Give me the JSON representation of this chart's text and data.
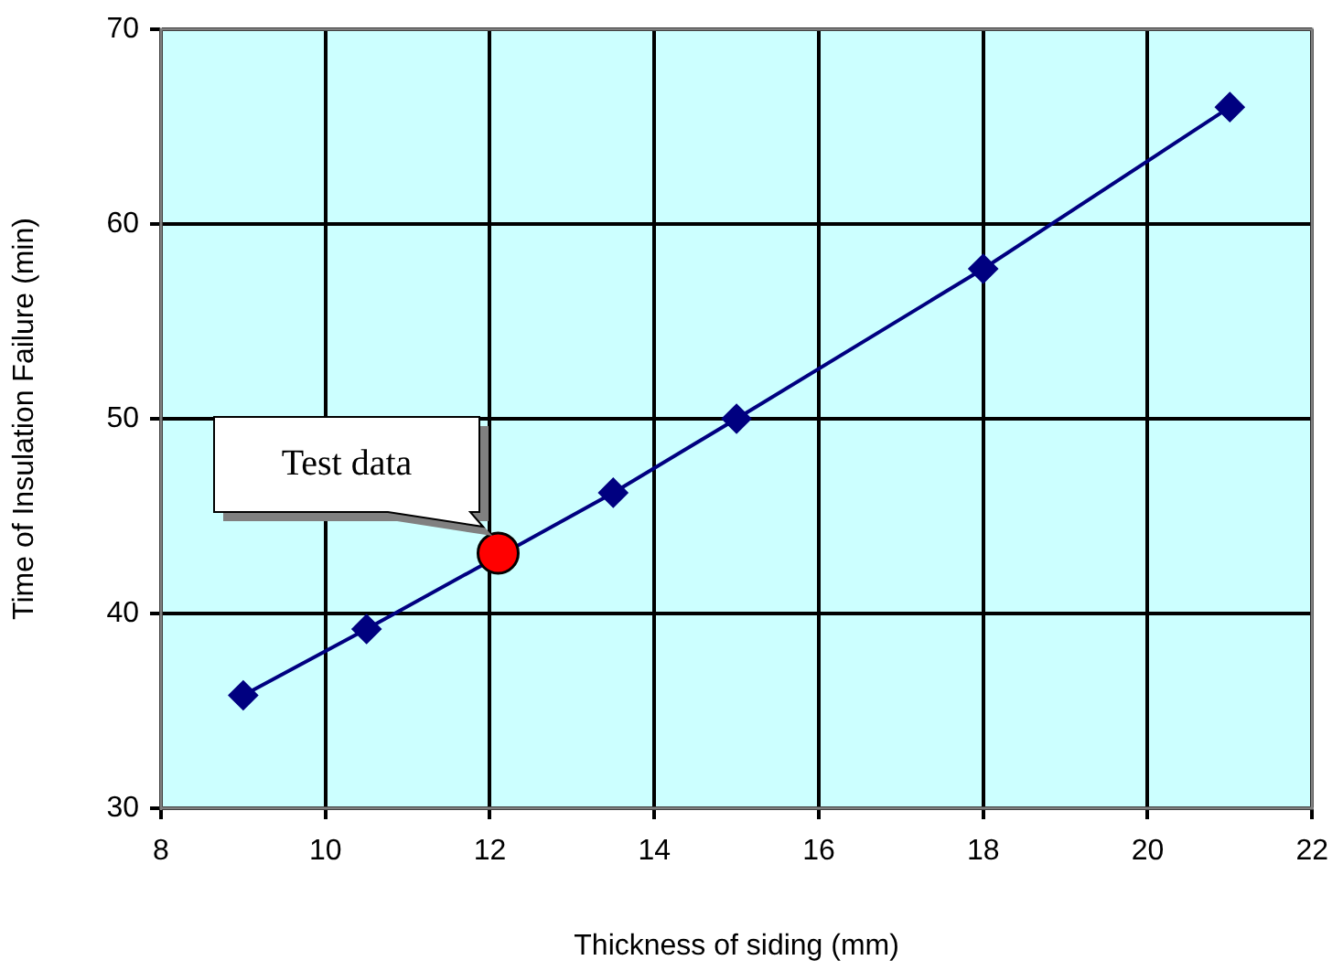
{
  "chart_data": {
    "type": "line",
    "xlabel": "Thickness of siding (mm)",
    "ylabel": "Time of Insulation Failure (min)",
    "series": [
      {
        "color": "#000080",
        "x": [
          9,
          10.5,
          12,
          13.5,
          15,
          18,
          21
        ],
        "values": [
          35.8,
          39.2,
          null,
          46.2,
          50.0,
          57.7,
          66.0
        ],
        "marker": "diamond"
      },
      {
        "type": "scatter",
        "color": "#ff0000",
        "x": [
          12.1
        ],
        "values": [
          43.1
        ],
        "marker": "circle"
      }
    ],
    "xlim": [
      8,
      22
    ],
    "xticks": [
      8,
      10,
      12,
      14,
      16,
      18,
      20,
      22
    ],
    "ylim": [
      30,
      70
    ],
    "yticks": [
      30,
      40,
      50,
      60,
      70
    ],
    "grid": true,
    "legend": false,
    "annotations": [
      "Test data"
    ]
  }
}
